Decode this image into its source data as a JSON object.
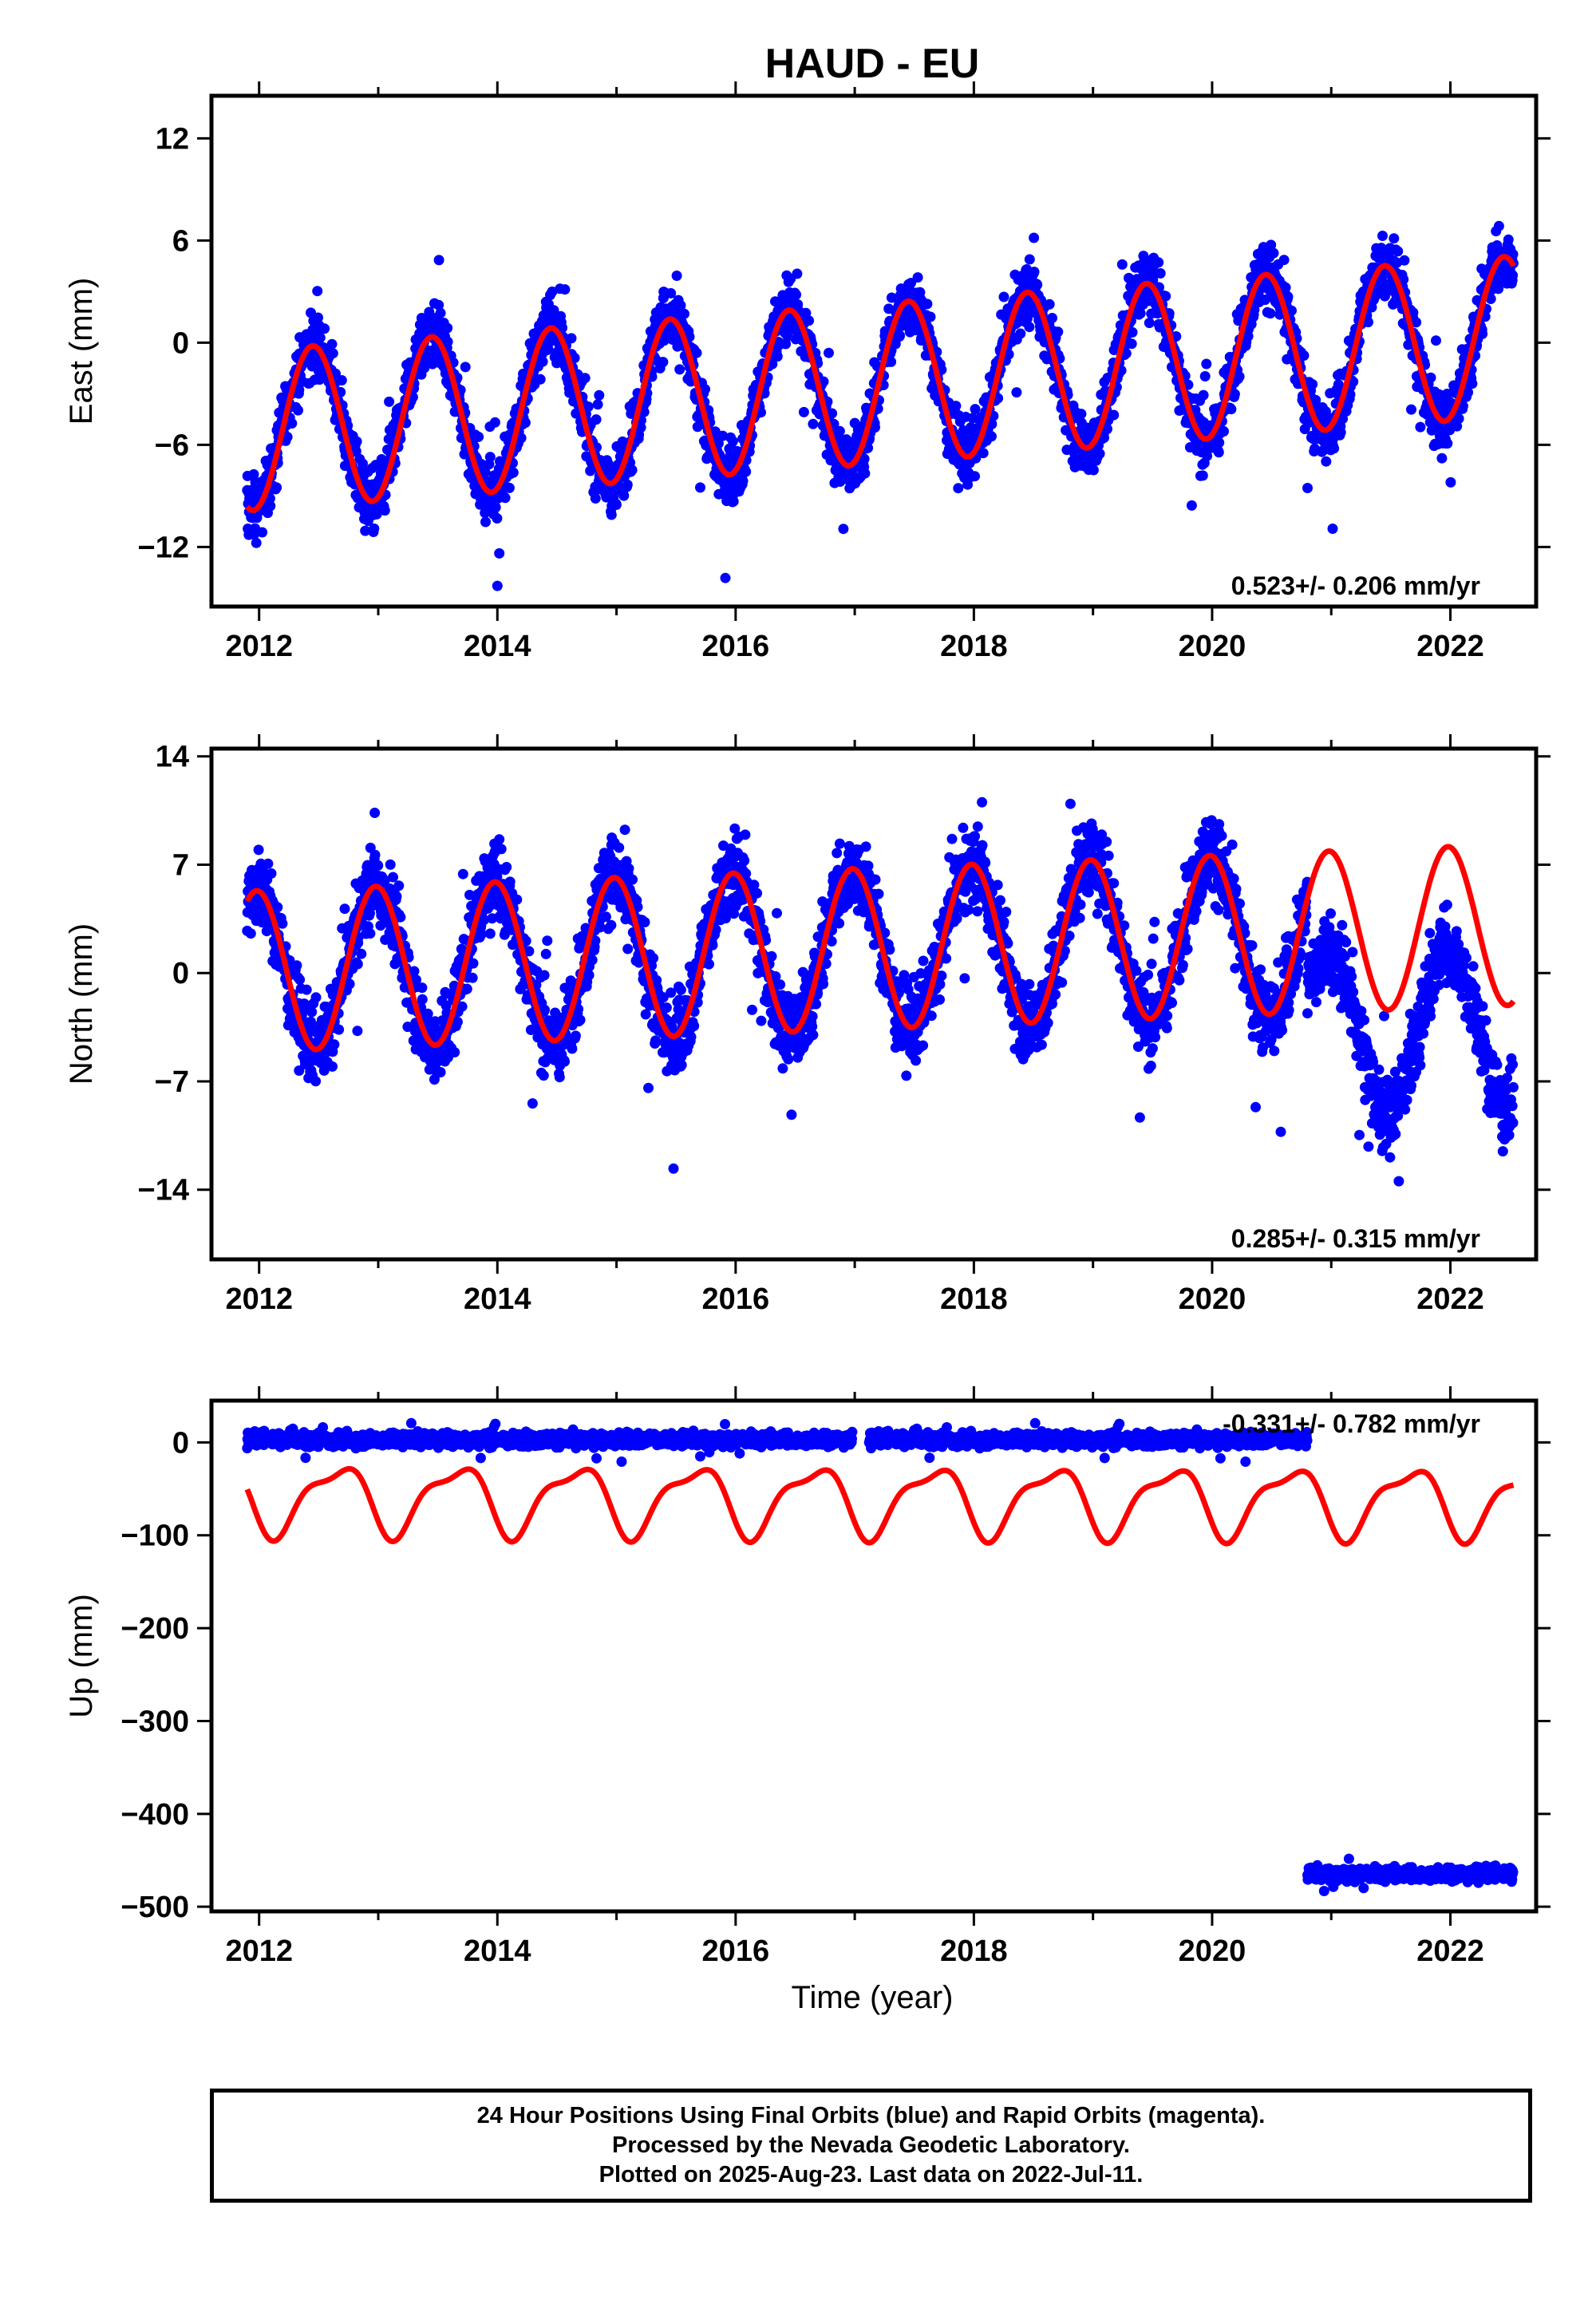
{
  "title": "HAUD - EU",
  "xlabel": "Time (year)",
  "footer": {
    "line1": "24 Hour Positions Using Final Orbits (blue) and Rapid Orbits (magenta).",
    "line2": "Processed by the Nevada Geodetic Laboratory.",
    "line3": "Plotted on 2025-Aug-23. Last data on 2022-Jul-11."
  },
  "colors": {
    "data": "#0000ff",
    "model": "#ff0000",
    "axis": "#000000"
  },
  "chart_data": [
    {
      "type": "scatter",
      "panel": "east",
      "ylabel": "East (mm)",
      "rate_label": "0.523+/- 0.206 mm/yr",
      "xlim": [
        2011.6,
        2022.72
      ],
      "ylim": [
        -15.5,
        14.5
      ],
      "xticks": [
        2012,
        2014,
        2016,
        2018,
        2020,
        2022
      ],
      "yticks": [
        12,
        6,
        0,
        -6,
        -12
      ],
      "ytick_labels": [
        "12",
        "6",
        "0",
        "−6",
        "−12"
      ],
      "data_range": [
        2011.9,
        2022.53
      ],
      "model": {
        "offset": -2.4,
        "rate": 0.523,
        "t0": 2017.2,
        "annual_amp": 4.7,
        "annual_peak": 0.45,
        "semi_amp": 0.0,
        "semi_peak": 0.0,
        "start": 2011.9,
        "end": 2022.53
      },
      "scatter": {
        "noise": 1.3,
        "jumps": []
      },
      "series": [
        {
          "name": "daily positions",
          "role": "data"
        },
        {
          "name": "model",
          "role": "model"
        }
      ]
    },
    {
      "type": "scatter",
      "panel": "north",
      "ylabel": "North (mm)",
      "rate_label": "0.285+/- 0.315 mm/yr",
      "xlim": [
        2011.6,
        2022.72
      ],
      "ylim": [
        -18.5,
        14.5
      ],
      "xticks": [
        2012,
        2014,
        2016,
        2018,
        2020,
        2022
      ],
      "yticks": [
        14,
        7,
        0,
        -7,
        -14
      ],
      "ytick_labels": [
        "14",
        "7",
        "0",
        "−7",
        "−14"
      ],
      "data_range": [
        2011.9,
        2022.53
      ],
      "model": {
        "offset": 1.6,
        "rate": 0.285,
        "t0": 2017.2,
        "annual_amp": 5.2,
        "annual_peak": 0.98,
        "semi_amp": 0.0,
        "semi_peak": 0.0,
        "start": 2011.9,
        "end": 2022.53
      },
      "scatter": {
        "noise": 1.8,
        "jumps": [
          {
            "start": 2020.8,
            "end": 2022.53,
            "shift": -6.5
          }
        ]
      },
      "series": [
        {
          "name": "daily positions",
          "role": "data"
        },
        {
          "name": "model",
          "role": "model"
        }
      ]
    },
    {
      "type": "scatter",
      "panel": "up",
      "ylabel": "Up (mm)",
      "rate_label": "-0.331+/- 0.782 mm/yr",
      "xlim": [
        2011.6,
        2022.72
      ],
      "ylim": [
        -505,
        45
      ],
      "xticks": [
        2012,
        2014,
        2016,
        2018,
        2020,
        2022
      ],
      "yticks": [
        0,
        -100,
        -200,
        -300,
        -400,
        -500
      ],
      "ytick_labels": [
        "0",
        "−100",
        "−200",
        "−300",
        "−400",
        "−500"
      ],
      "data_range": [
        2011.9,
        2022.53
      ],
      "model": {
        "offset": -62,
        "rate": -0.331,
        "t0": 2017.2,
        "annual_amp": 35,
        "annual_peak": 0.65,
        "semi_amp": 12,
        "semi_peak": 0.35,
        "start": 2011.9,
        "end": 2022.53
      },
      "scatter": {
        "noise": 5,
        "base": 3,
        "gaps": [
          [
            2016.98,
            2017.12
          ]
        ],
        "jumps": [
          {
            "start": 2020.8,
            "end": 2022.53,
            "value": -465
          }
        ]
      },
      "series": [
        {
          "name": "daily positions",
          "role": "data"
        },
        {
          "name": "model",
          "role": "model"
        }
      ]
    }
  ]
}
